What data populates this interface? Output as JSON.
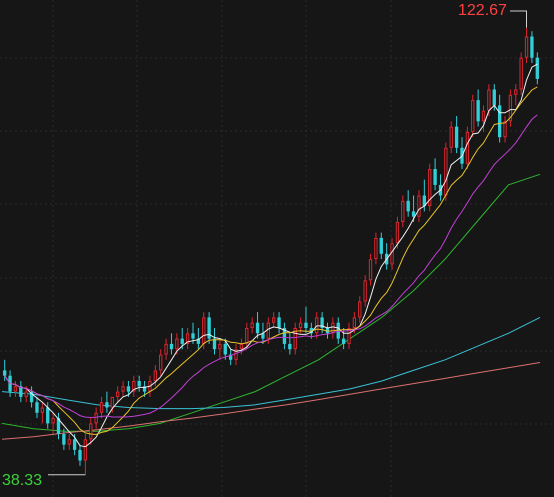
{
  "colors": {
    "background": "#161616",
    "grid": "#2a2a2a",
    "up": "#d9262f",
    "down": "#32cfd9",
    "ma5": "#f0f0f0",
    "ma10": "#e8c22b",
    "ma20": "#c23fd6",
    "ma60": "#2fb52f",
    "ma120": "#3ac2d6",
    "ma250": "#d9706f",
    "max_label": "#ff4040",
    "min_label": "#3bd13b"
  },
  "chart_data": {
    "type": "candlestick",
    "title": "",
    "xlabel": "",
    "ylabel": "",
    "ylim": [
      36,
      126
    ],
    "grid": true,
    "max_label": "122.67",
    "min_label": "38.33",
    "ohlc": [
      [
        58,
        60,
        56,
        57
      ],
      [
        57,
        58,
        53,
        54
      ],
      [
        54,
        56,
        53,
        55
      ],
      [
        55,
        56,
        52,
        53
      ],
      [
        53,
        55,
        52,
        54
      ],
      [
        54,
        55,
        51,
        52
      ],
      [
        52,
        53,
        49,
        50
      ],
      [
        50,
        52,
        48,
        51
      ],
      [
        51,
        52,
        47,
        48
      ],
      [
        48,
        50,
        46,
        49
      ],
      [
        49,
        50,
        45,
        46
      ],
      [
        46,
        47,
        43,
        44
      ],
      [
        44,
        46,
        43,
        45
      ],
      [
        45,
        46,
        42,
        43
      ],
      [
        43,
        44,
        40,
        41
      ],
      [
        41,
        46,
        38.33,
        45
      ],
      [
        45,
        49,
        44,
        48
      ],
      [
        48,
        51,
        47,
        50
      ],
      [
        50,
        53,
        49,
        52
      ],
      [
        52,
        54,
        50,
        51
      ],
      [
        51,
        53,
        50,
        53
      ],
      [
        53,
        55,
        52,
        54
      ],
      [
        54,
        56,
        53,
        55
      ],
      [
        55,
        56,
        53,
        54
      ],
      [
        54,
        57,
        53,
        56
      ],
      [
        56,
        57,
        54,
        55
      ],
      [
        55,
        56,
        53,
        54
      ],
      [
        54,
        57,
        53,
        56
      ],
      [
        56,
        59,
        55,
        58
      ],
      [
        58,
        62,
        57,
        61
      ],
      [
        61,
        64,
        60,
        63
      ],
      [
        63,
        65,
        61,
        62
      ],
      [
        62,
        65,
        61,
        64
      ],
      [
        64,
        66,
        62,
        63
      ],
      [
        63,
        66,
        62,
        65
      ],
      [
        65,
        67,
        63,
        64
      ],
      [
        64,
        66,
        62,
        63
      ],
      [
        63,
        69,
        62,
        68
      ],
      [
        68,
        69,
        63,
        64
      ],
      [
        64,
        66,
        61,
        62
      ],
      [
        62,
        64,
        60,
        63
      ],
      [
        63,
        64,
        60,
        61
      ],
      [
        61,
        62,
        59,
        60
      ],
      [
        60,
        63,
        59,
        62
      ],
      [
        62,
        64,
        61,
        63
      ],
      [
        63,
        67,
        62,
        66
      ],
      [
        66,
        68,
        65,
        67
      ],
      [
        67,
        69,
        64,
        65
      ],
      [
        65,
        67,
        63,
        64
      ],
      [
        64,
        68,
        63,
        67
      ],
      [
        67,
        69,
        66,
        68
      ],
      [
        68,
        69,
        65,
        66
      ],
      [
        66,
        67,
        62,
        63
      ],
      [
        63,
        65,
        61,
        62
      ],
      [
        62,
        67,
        61,
        66
      ],
      [
        66,
        68,
        65,
        67
      ],
      [
        67,
        70,
        65,
        66
      ],
      [
        66,
        67,
        64,
        65
      ],
      [
        65,
        69,
        64,
        68
      ],
      [
        68,
        69,
        65,
        66
      ],
      [
        66,
        67,
        64,
        65
      ],
      [
        65,
        68,
        64,
        67
      ],
      [
        67,
        68,
        63,
        64
      ],
      [
        64,
        66,
        62,
        63
      ],
      [
        63,
        67,
        62,
        66
      ],
      [
        66,
        69,
        65,
        68
      ],
      [
        68,
        72,
        67,
        71
      ],
      [
        71,
        76,
        70,
        75
      ],
      [
        75,
        80,
        74,
        79
      ],
      [
        79,
        84,
        78,
        83
      ],
      [
        83,
        84,
        79,
        80
      ],
      [
        80,
        82,
        77,
        78
      ],
      [
        78,
        83,
        77,
        82
      ],
      [
        82,
        87,
        81,
        86
      ],
      [
        86,
        91,
        85,
        90
      ],
      [
        90,
        92,
        87,
        88
      ],
      [
        88,
        91,
        86,
        87
      ],
      [
        87,
        92,
        86,
        91
      ],
      [
        91,
        94,
        88,
        89
      ],
      [
        89,
        97,
        88,
        96
      ],
      [
        96,
        98,
        92,
        93
      ],
      [
        93,
        95,
        90,
        91
      ],
      [
        91,
        101,
        90,
        100
      ],
      [
        100,
        105,
        99,
        104
      ],
      [
        104,
        106,
        99,
        100
      ],
      [
        100,
        102,
        96,
        97
      ],
      [
        97,
        104,
        96,
        103
      ],
      [
        103,
        110,
        102,
        109
      ],
      [
        109,
        111,
        104,
        105
      ],
      [
        105,
        108,
        103,
        107
      ],
      [
        107,
        112,
        106,
        111
      ],
      [
        111,
        112,
        107,
        108
      ],
      [
        108,
        110,
        101,
        102
      ],
      [
        102,
        106,
        101,
        105
      ],
      [
        105,
        111,
        104,
        110
      ],
      [
        110,
        112,
        108,
        111
      ],
      [
        111,
        118,
        110,
        117
      ],
      [
        117,
        122.67,
        116,
        121
      ],
      [
        121,
        122,
        116,
        117
      ],
      [
        117,
        118,
        112,
        113
      ]
    ],
    "ma": [
      {
        "period": 5,
        "color_key": "ma5"
      },
      {
        "period": 10,
        "color_key": "ma10"
      },
      {
        "period": 20,
        "color_key": "ma20"
      }
    ],
    "long_ma": [
      {
        "key": "ma60",
        "y": [
          48,
          47,
          46.5,
          46.5,
          47,
          48,
          50,
          52,
          54,
          57,
          60,
          64,
          68,
          73,
          79,
          86,
          93,
          95
        ]
      },
      {
        "key": "ma120",
        "y": [
          54,
          53.5,
          52.5,
          51.5,
          51,
          50.8,
          50.8,
          51,
          51.5,
          52.5,
          53.5,
          54.5,
          56,
          58,
          60,
          62.5,
          65,
          68
        ]
      },
      {
        "key": "ma250",
        "y": [
          45,
          45.5,
          46.2,
          46.8,
          47.5,
          48.3,
          49,
          49.8,
          50.7,
          51.5,
          52.5,
          53.5,
          54.5,
          55.5,
          56.5,
          57.5,
          58.5,
          59.5
        ]
      }
    ]
  }
}
